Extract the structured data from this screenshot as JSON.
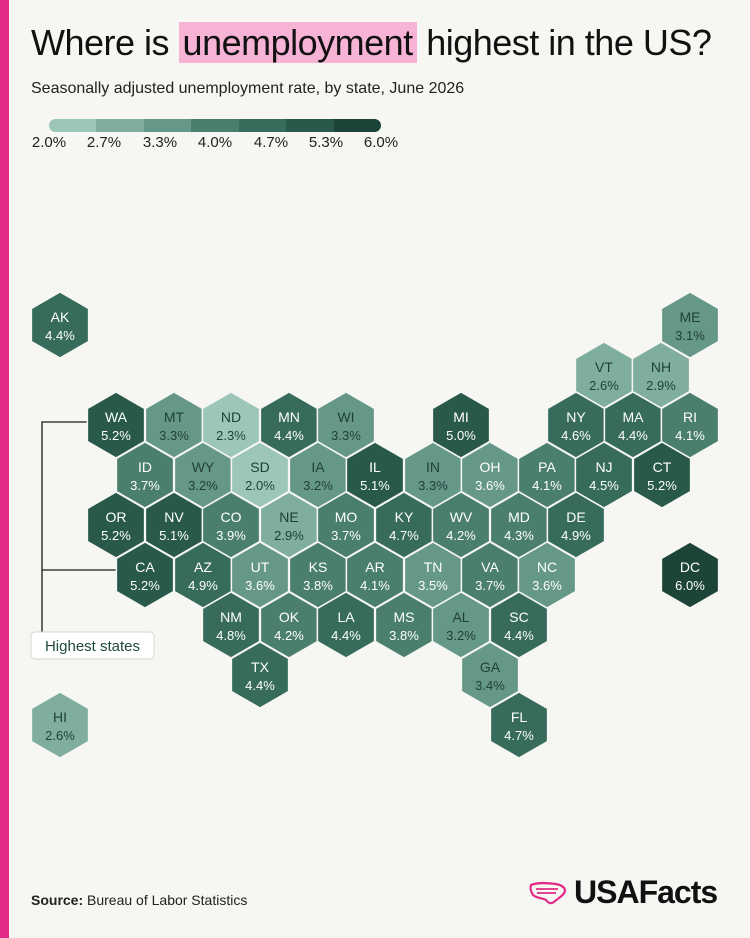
{
  "title_parts": {
    "before": "Where is ",
    "highlight": "unemployment",
    "after": " highest in the US?"
  },
  "subtitle": "Seasonally adjusted unemployment rate, by state, June 2026",
  "legend": {
    "ticks": [
      "2.0%",
      "2.7%",
      "3.3%",
      "4.0%",
      "4.7%",
      "5.3%",
      "6.0%"
    ],
    "colors": [
      "#9cc7b8",
      "#7fae9e",
      "#66988a",
      "#4a7f6e",
      "#376c5c",
      "#28594a",
      "#1c4438"
    ]
  },
  "callout_label": "Highest states",
  "source_label": "Source:",
  "source_text": "Bureau of Labor Statistics",
  "brand": "USAFacts",
  "colors": {
    "accent_bar": "#e22a86",
    "highlight": "#f6b3d5",
    "background": "#f6f6f2",
    "label_light": "#1f3f35",
    "label_dark": "#ffffff"
  },
  "states": [
    {
      "abbr": "AK",
      "value": 4.4,
      "label": "4.4%"
    },
    {
      "abbr": "ME",
      "value": 3.1,
      "label": "3.1%"
    },
    {
      "abbr": "VT",
      "value": 2.6,
      "label": "2.6%"
    },
    {
      "abbr": "NH",
      "value": 2.9,
      "label": "2.9%"
    },
    {
      "abbr": "WA",
      "value": 5.2,
      "label": "5.2%"
    },
    {
      "abbr": "MT",
      "value": 3.3,
      "label": "3.3%"
    },
    {
      "abbr": "ND",
      "value": 2.3,
      "label": "2.3%"
    },
    {
      "abbr": "MN",
      "value": 4.4,
      "label": "4.4%"
    },
    {
      "abbr": "WI",
      "value": 3.3,
      "label": "3.3%"
    },
    {
      "abbr": "MI",
      "value": 5.0,
      "label": "5.0%"
    },
    {
      "abbr": "NY",
      "value": 4.6,
      "label": "4.6%"
    },
    {
      "abbr": "MA",
      "value": 4.4,
      "label": "4.4%"
    },
    {
      "abbr": "RI",
      "value": 4.1,
      "label": "4.1%"
    },
    {
      "abbr": "ID",
      "value": 3.7,
      "label": "3.7%"
    },
    {
      "abbr": "WY",
      "value": 3.2,
      "label": "3.2%"
    },
    {
      "abbr": "SD",
      "value": 2.0,
      "label": "2.0%"
    },
    {
      "abbr": "IA",
      "value": 3.2,
      "label": "3.2%"
    },
    {
      "abbr": "IL",
      "value": 5.1,
      "label": "5.1%"
    },
    {
      "abbr": "IN",
      "value": 3.3,
      "label": "3.3%"
    },
    {
      "abbr": "OH",
      "value": 3.6,
      "label": "3.6%"
    },
    {
      "abbr": "PA",
      "value": 4.1,
      "label": "4.1%"
    },
    {
      "abbr": "NJ",
      "value": 4.5,
      "label": "4.5%"
    },
    {
      "abbr": "CT",
      "value": 5.2,
      "label": "5.2%"
    },
    {
      "abbr": "OR",
      "value": 5.2,
      "label": "5.2%"
    },
    {
      "abbr": "NV",
      "value": 5.1,
      "label": "5.1%"
    },
    {
      "abbr": "CO",
      "value": 3.9,
      "label": "3.9%"
    },
    {
      "abbr": "NE",
      "value": 2.9,
      "label": "2.9%"
    },
    {
      "abbr": "MO",
      "value": 3.7,
      "label": "3.7%"
    },
    {
      "abbr": "KY",
      "value": 4.7,
      "label": "4.7%"
    },
    {
      "abbr": "WV",
      "value": 4.2,
      "label": "4.2%"
    },
    {
      "abbr": "MD",
      "value": 4.3,
      "label": "4.3%"
    },
    {
      "abbr": "DE",
      "value": 4.9,
      "label": "4.9%"
    },
    {
      "abbr": "CA",
      "value": 5.2,
      "label": "5.2%"
    },
    {
      "abbr": "AZ",
      "value": 4.9,
      "label": "4.9%"
    },
    {
      "abbr": "UT",
      "value": 3.6,
      "label": "3.6%"
    },
    {
      "abbr": "KS",
      "value": 3.8,
      "label": "3.8%"
    },
    {
      "abbr": "AR",
      "value": 4.1,
      "label": "4.1%"
    },
    {
      "abbr": "TN",
      "value": 3.5,
      "label": "3.5%"
    },
    {
      "abbr": "VA",
      "value": 3.7,
      "label": "3.7%"
    },
    {
      "abbr": "NC",
      "value": 3.6,
      "label": "3.6%"
    },
    {
      "abbr": "DC",
      "value": 6.0,
      "label": "6.0%"
    },
    {
      "abbr": "NM",
      "value": 4.8,
      "label": "4.8%"
    },
    {
      "abbr": "OK",
      "value": 4.2,
      "label": "4.2%"
    },
    {
      "abbr": "LA",
      "value": 4.4,
      "label": "4.4%"
    },
    {
      "abbr": "MS",
      "value": 3.8,
      "label": "3.8%"
    },
    {
      "abbr": "AL",
      "value": 3.2,
      "label": "3.2%"
    },
    {
      "abbr": "SC",
      "value": 4.4,
      "label": "4.4%"
    },
    {
      "abbr": "TX",
      "value": 4.4,
      "label": "4.4%"
    },
    {
      "abbr": "GA",
      "value": 3.4,
      "label": "3.4%"
    },
    {
      "abbr": "HI",
      "value": 2.6,
      "label": "2.6%"
    },
    {
      "abbr": "FL",
      "value": 4.7,
      "label": "4.7%"
    }
  ]
}
